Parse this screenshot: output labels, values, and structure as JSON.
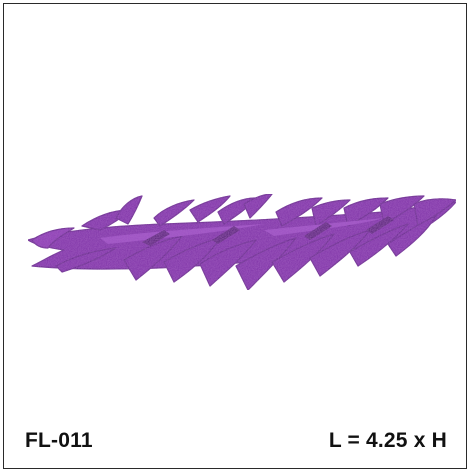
{
  "design": {
    "code": "FL-011",
    "size": "L = 4.25 x H",
    "graphic_icon": "purple-flame-streak-icon",
    "colors": {
      "flame_dark": "#5e1f86",
      "flame_main": "#7d2fa6",
      "flame_light": "#a25bc7",
      "border": "#2a2a2a"
    }
  }
}
